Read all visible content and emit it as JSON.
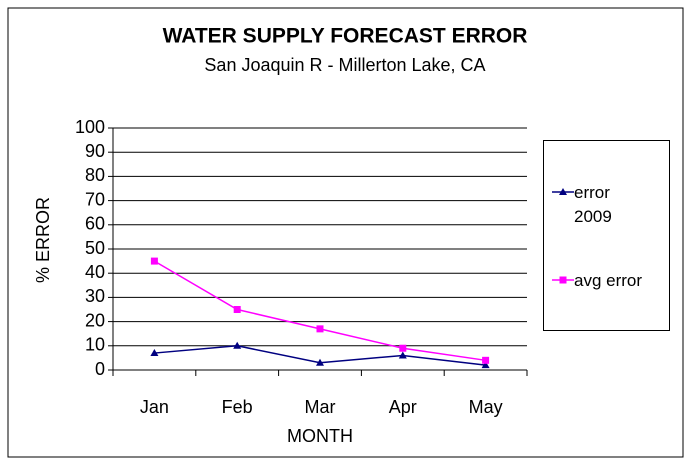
{
  "chart_data": {
    "type": "line",
    "title": "WATER SUPPLY FORECAST ERROR",
    "subtitle": "San Joaquin R - Millerton Lake, CA",
    "x_label": "MONTH",
    "y_label": "% ERROR",
    "categories": [
      "Jan",
      "Feb",
      "Mar",
      "Apr",
      "May"
    ],
    "series": [
      {
        "name": "error 2009",
        "color": "#000080",
        "marker": "triangle",
        "values": [
          7,
          10,
          3,
          6,
          2
        ]
      },
      {
        "name": "avg error",
        "color": "#ff00ff",
        "marker": "square",
        "values": [
          45,
          25,
          17,
          9,
          4
        ]
      }
    ],
    "ylim": [
      0,
      100
    ],
    "yticks": [
      0,
      10,
      20,
      30,
      40,
      50,
      60,
      70,
      80,
      90,
      100
    ],
    "grid": true,
    "legend": "right"
  }
}
